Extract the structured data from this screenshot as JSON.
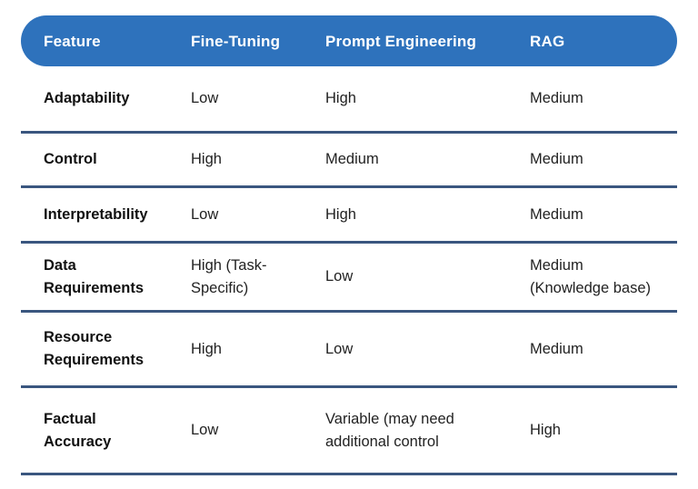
{
  "chart_data": {
    "type": "table",
    "columns": [
      "Feature",
      "Fine-Tuning",
      "Prompt Engineering",
      "RAG"
    ],
    "rows": [
      {
        "cells": [
          "Adaptability",
          "Low",
          "High",
          "Medium"
        ]
      },
      {
        "cells": [
          "Control",
          "High",
          "Medium",
          "Medium"
        ]
      },
      {
        "cells": [
          "Interpretability",
          "Low",
          "High",
          "Medium"
        ]
      },
      {
        "cells": [
          "Data\nRequirements",
          "High (Task-\nSpecific)",
          "Low",
          "Medium\n(Knowledge base)"
        ]
      },
      {
        "cells": [
          "Resource\nRequirements",
          "High",
          "Low",
          "Medium"
        ]
      },
      {
        "cells": [
          "Factual\nAccuracy",
          "Low",
          "Variable (may need\nadditional control",
          "High"
        ]
      }
    ],
    "legend": null,
    "title": ""
  },
  "colors": {
    "header-bg": "#2e72bc",
    "header-text": "#ffffff",
    "divider": "#3a567f",
    "feature-text": "#111111",
    "value-text": "#222222",
    "background": "#ffffff"
  }
}
